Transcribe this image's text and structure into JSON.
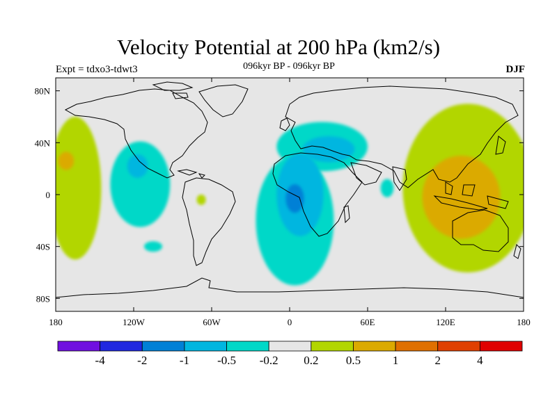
{
  "title": "Velocity Potential at 200 hPa (km2/s)",
  "left_string": "Expt = tdxo3-tdwt3",
  "center_string": "096kyr BP - 096kyr BP",
  "right_string": "DJF",
  "map": {
    "lon_range": [
      -180,
      180
    ],
    "lat_range": [
      -90,
      90
    ],
    "background_color": "#e6e6e6",
    "coastline_color": "#000000",
    "x_ticks": [
      {
        "value": -180,
        "label": "180"
      },
      {
        "value": -120,
        "label": "120W"
      },
      {
        "value": -60,
        "label": "60W"
      },
      {
        "value": 0,
        "label": "0"
      },
      {
        "value": 60,
        "label": "60E"
      },
      {
        "value": 120,
        "label": "120E"
      },
      {
        "value": 180,
        "label": "180"
      }
    ],
    "y_ticks": [
      {
        "value": 80,
        "label": "80N"
      },
      {
        "value": 40,
        "label": "40N"
      },
      {
        "value": 0,
        "label": "0"
      },
      {
        "value": -40,
        "label": "40S"
      },
      {
        "value": -80,
        "label": "80S"
      }
    ],
    "regions": [
      {
        "level": "0.2 to 0.5",
        "color": "#b2d600",
        "lon": -165,
        "lat": 5,
        "rx": 20,
        "ry": 55
      },
      {
        "level": "0.2 to 0.5",
        "color": "#b2d600",
        "lon": 137,
        "lat": 5,
        "rx": 50,
        "ry": 65
      },
      {
        "level": "0.5 to 1",
        "color": "#dbaa00",
        "lon": 132,
        "lat": -2,
        "rx": 30,
        "ry": 32
      },
      {
        "level": "0.5 to 1",
        "color": "#dbaa00",
        "lon": -172,
        "lat": 26,
        "rx": 6,
        "ry": 7
      },
      {
        "level": "0.2 to 0.5",
        "color": "#b2d600",
        "lon": -68,
        "lat": -4,
        "rx": 3.5,
        "ry": 4
      },
      {
        "level": "-0.5 to -0.2",
        "color": "#00d8c8",
        "lon": 4,
        "lat": -20,
        "rx": 30,
        "ry": 50
      },
      {
        "level": "-0.5 to -0.2",
        "color": "#00d8c8",
        "lon": 25,
        "lat": 37,
        "rx": 35,
        "ry": 19
      },
      {
        "level": "-0.5 to -0.2",
        "color": "#00d8c8",
        "lon": -115,
        "lat": 8,
        "rx": 23,
        "ry": 33
      },
      {
        "level": "-0.5 to -0.2",
        "color": "#00d8c8",
        "lon": 75,
        "lat": 5,
        "rx": 5,
        "ry": 7
      },
      {
        "level": "-0.5 to -0.2",
        "color": "#00d8c8",
        "lon": -105,
        "lat": -40,
        "rx": 7,
        "ry": 4
      },
      {
        "level": "-1 to -0.5",
        "color": "#00b6e0",
        "lon": 8,
        "lat": 0,
        "rx": 18,
        "ry": 32
      },
      {
        "level": "-1 to -0.5",
        "color": "#00b6e0",
        "lon": 30,
        "lat": 35,
        "rx": 20,
        "ry": 10
      },
      {
        "level": "-1 to -0.5",
        "color": "#00b6e0",
        "lon": -117,
        "lat": 22,
        "rx": 8,
        "ry": 9
      },
      {
        "level": "-2 to -1",
        "color": "#0080d6",
        "lon": 4,
        "lat": -3,
        "rx": 7,
        "ry": 11
      }
    ]
  },
  "colorbar": {
    "colors": [
      "#7010e0",
      "#2028e0",
      "#0080d6",
      "#00b6e0",
      "#00d8c8",
      "#e6e6e6",
      "#b2d600",
      "#dbaa00",
      "#e07000",
      "#e04000",
      "#e00000"
    ],
    "labels": [
      "-4",
      "-2",
      "-1",
      "-0.5",
      "-0.2",
      "0.2",
      "0.5",
      "1",
      "2",
      "4"
    ]
  }
}
